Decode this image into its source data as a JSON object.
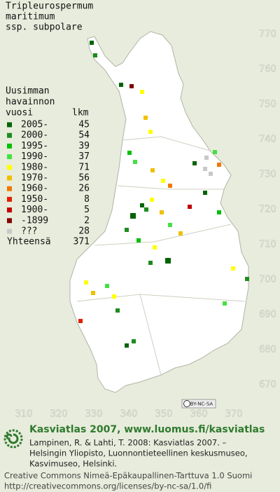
{
  "title": [
    "Tripleurospermum",
    "maritimum",
    "ssp. subpolare"
  ],
  "legend": {
    "heading": [
      "Uusimman",
      "havainnon",
      "vuosi"
    ],
    "count_heading": "lkm",
    "items": [
      {
        "label": "2005-",
        "count": 45,
        "color": "#006400"
      },
      {
        "label": "2000-",
        "count": 54,
        "color": "#1e8c1e"
      },
      {
        "label": "1995-",
        "count": 39,
        "color": "#00c000"
      },
      {
        "label": "1990-",
        "count": 37,
        "color": "#44e044"
      },
      {
        "label": "1980-",
        "count": 71,
        "color": "#ffff00"
      },
      {
        "label": "1970-",
        "count": 56,
        "color": "#f0c000"
      },
      {
        "label": "1960-",
        "count": 26,
        "color": "#f07800"
      },
      {
        "label": "1950-",
        "count": 8,
        "color": "#e02000"
      },
      {
        "label": "1900-",
        "count": 5,
        "color": "#c00000"
      },
      {
        "label": "-1899",
        "count": 2,
        "color": "#800000"
      },
      {
        "label": "???",
        "count": 28,
        "color": "#c8c8c8"
      }
    ],
    "total_label": "Yhteensä",
    "total": 371
  },
  "grid": {
    "x_labels": [
      310,
      320,
      330,
      340,
      350,
      360,
      370
    ],
    "y_labels": [
      770,
      760,
      750,
      740,
      730,
      720,
      710,
      700,
      690,
      680,
      670
    ]
  },
  "badge": "BY-NC-SA",
  "footer": {
    "brand": "Kasviatlas 2007, www.luomus.fi/kasviatlas",
    "citation": [
      "Lampinen, R. & Lahti, T. 2008: Kasviatlas 2007. –",
      "Helsingin Yliopisto, Luonnontieteellinen keskusmuseo,",
      "Kasvimuseo, Helsinki."
    ],
    "license": [
      "Creative Commons Nimeä-Epäkaupallinen-Tarttuva 1.0 Suomi",
      "http://creativecommons.org/licenses/by-nc-sa/1.0/fi"
    ]
  }
}
